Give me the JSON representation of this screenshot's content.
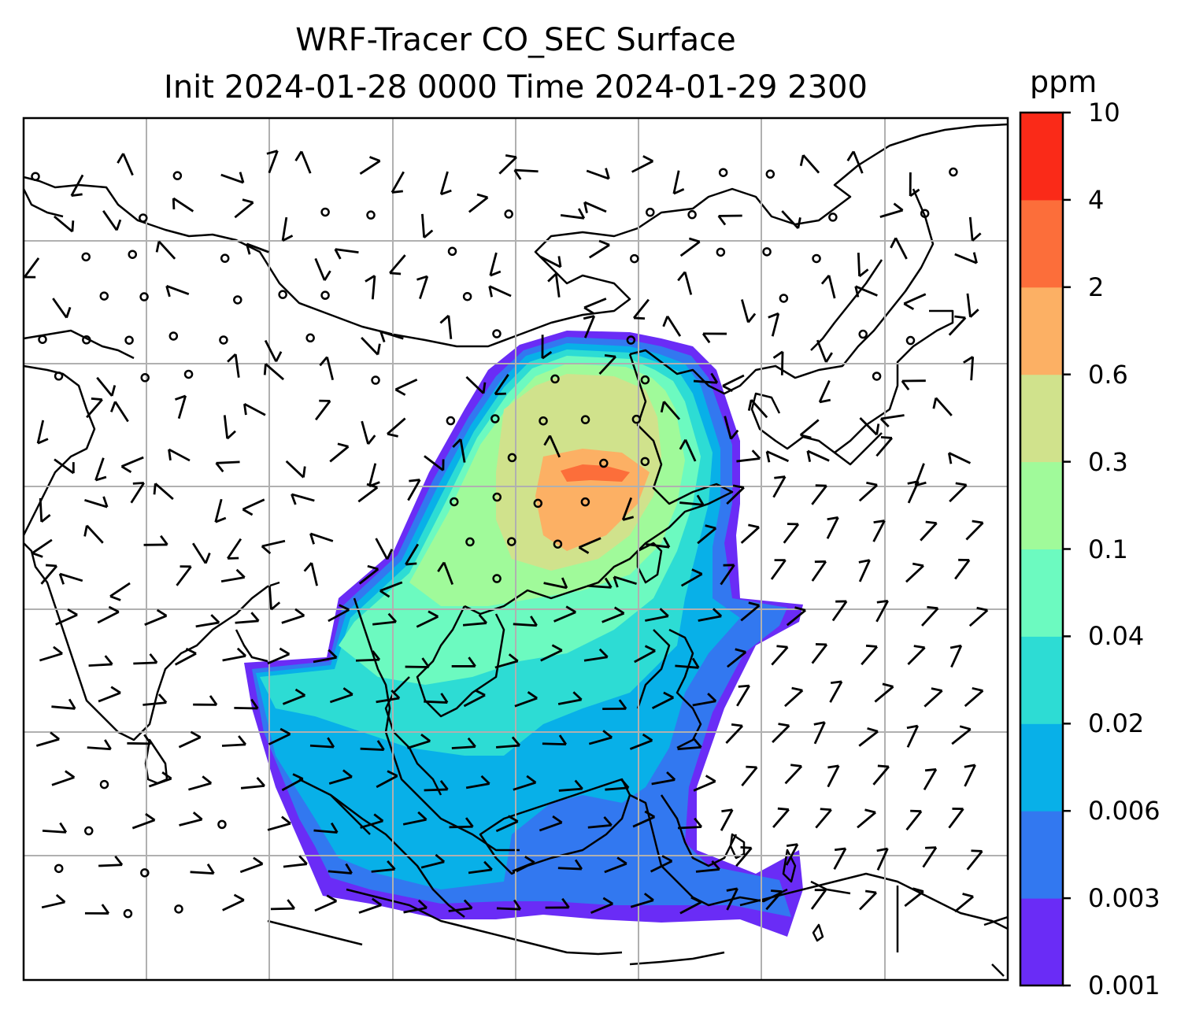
{
  "title": {
    "line1": "WRF-Tracer CO_SEC Surface",
    "line2": "Init 2024-01-28 0000 Time 2024-01-29 2300"
  },
  "colorbar": {
    "unit": "ppm",
    "levels": [
      "0.001",
      "0.003",
      "0.006",
      "0.02",
      "0.04",
      "0.1",
      "0.3",
      "0.6",
      "2",
      "4",
      "10"
    ],
    "colors": [
      "#6a2cf6",
      "#3278f0",
      "#08b0e8",
      "#2ddcd4",
      "#6cfac0",
      "#a0fa9a",
      "#d0e28c",
      "#fcb064",
      "#fc6e3a",
      "#fa2a18"
    ]
  },
  "map": {
    "frame_color": "#000000",
    "gridline_color": "#b0b0b0",
    "coastline_color": "#000000",
    "wind_symbol_color": "#000000"
  }
}
